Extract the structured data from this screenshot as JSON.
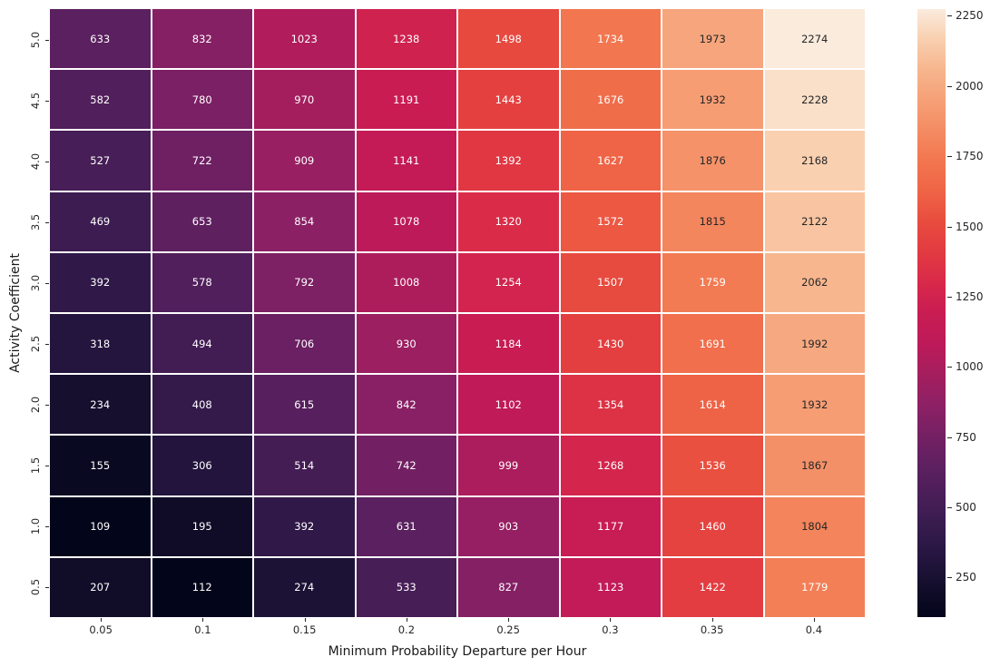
{
  "figure": {
    "background": "#ffffff"
  },
  "chart_data": {
    "type": "heatmap",
    "title": "",
    "xlabel": "Minimum Probability Departure per Hour",
    "ylabel": "Activity Coefficient",
    "x_categories": [
      "0.05",
      "0.1",
      "0.15",
      "0.2",
      "0.25",
      "0.3",
      "0.35",
      "0.4"
    ],
    "y_categories": [
      "5.0",
      "4.5",
      "4.0",
      "3.5",
      "3.0",
      "2.5",
      "2.0",
      "1.5",
      "1.0",
      "0.5"
    ],
    "values": [
      [
        633,
        832,
        1023,
        1238,
        1498,
        1734,
        1973,
        2274
      ],
      [
        582,
        780,
        970,
        1191,
        1443,
        1676,
        1932,
        2228
      ],
      [
        527,
        722,
        909,
        1141,
        1392,
        1627,
        1876,
        2168
      ],
      [
        469,
        653,
        854,
        1078,
        1320,
        1572,
        1815,
        2122
      ],
      [
        392,
        578,
        792,
        1008,
        1254,
        1507,
        1759,
        2062
      ],
      [
        318,
        494,
        706,
        930,
        1184,
        1430,
        1691,
        1992
      ],
      [
        234,
        408,
        615,
        842,
        1102,
        1354,
        1614,
        1932
      ],
      [
        155,
        306,
        514,
        742,
        999,
        1268,
        1536,
        1867
      ],
      [
        109,
        195,
        392,
        631,
        903,
        1177,
        1460,
        1804
      ],
      [
        207,
        112,
        274,
        533,
        827,
        1123,
        1422,
        1779
      ]
    ],
    "vmin": 109,
    "vmax": 2274,
    "grid": false,
    "cell_gridline_color": "#ffffff",
    "annotation_colors": {
      "light": "#ffffff",
      "dark": "#262626"
    },
    "colorbar": {
      "position": "right",
      "ticks": [
        250,
        500,
        750,
        1000,
        1250,
        1500,
        1750,
        2000,
        2250
      ]
    },
    "colormap": {
      "name": "rocket",
      "stops": [
        [
          0.0,
          "#03051B"
        ],
        [
          0.05,
          "#130E2B"
        ],
        [
          0.1,
          "#251540"
        ],
        [
          0.15,
          "#371C4E"
        ],
        [
          0.2,
          "#4A1E58"
        ],
        [
          0.25,
          "#5E2060"
        ],
        [
          0.3,
          "#762064"
        ],
        [
          0.35,
          "#8E2065"
        ],
        [
          0.4,
          "#A51E5E"
        ],
        [
          0.45,
          "#BE1A59"
        ],
        [
          0.5,
          "#C91C53"
        ],
        [
          0.55,
          "#D8294A"
        ],
        [
          0.6,
          "#E23A41"
        ],
        [
          0.65,
          "#E84C3E"
        ],
        [
          0.7,
          "#EF6446"
        ],
        [
          0.75,
          "#F2764F"
        ],
        [
          0.8,
          "#F48B62"
        ],
        [
          0.85,
          "#F6A077"
        ],
        [
          0.9,
          "#F7B58D"
        ],
        [
          0.95,
          "#F9CFAF"
        ],
        [
          1.0,
          "#FAEBDD"
        ]
      ]
    }
  }
}
